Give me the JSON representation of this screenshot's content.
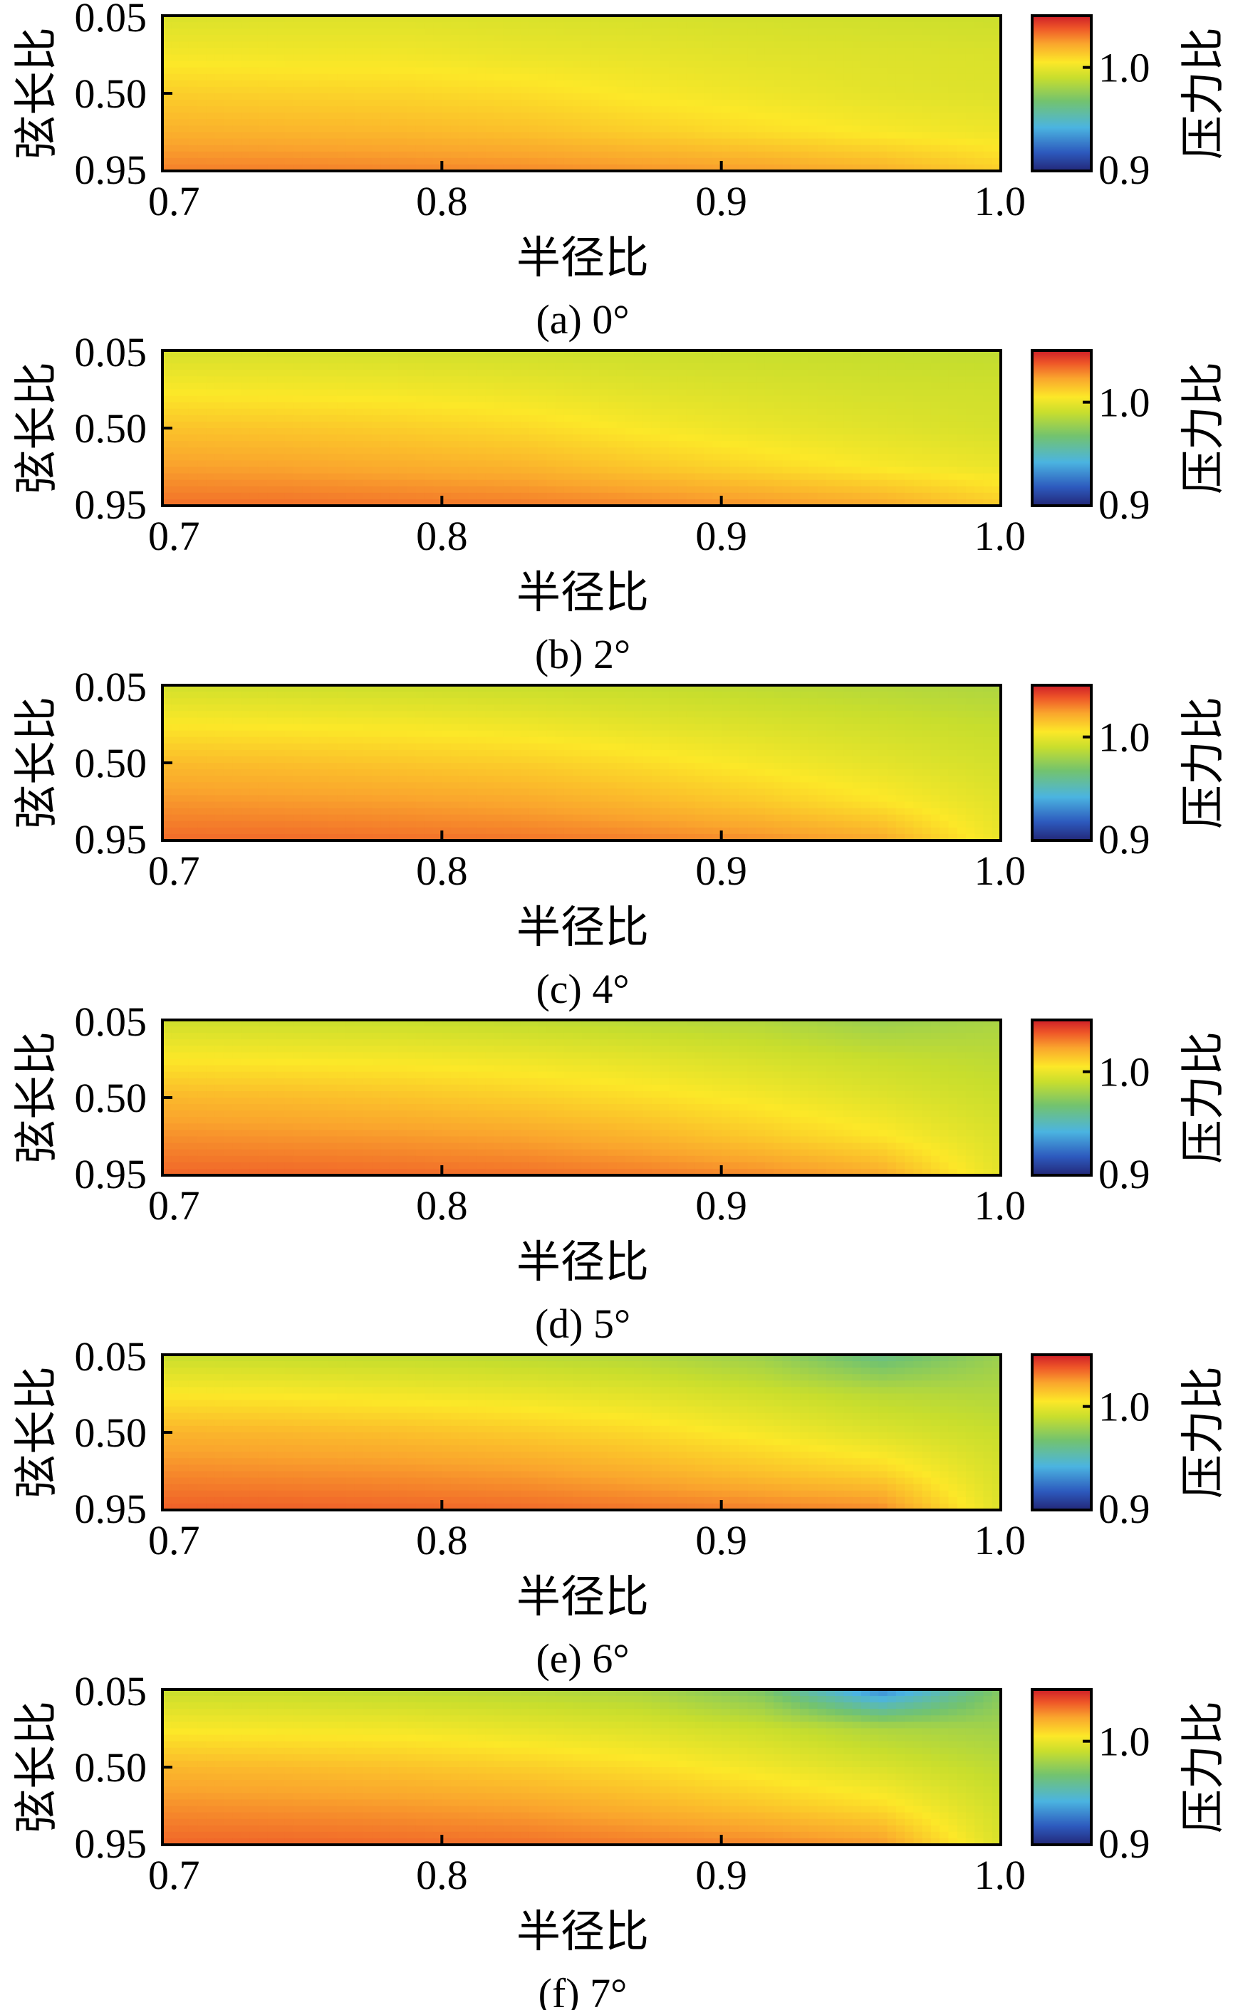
{
  "chart_data": [
    {
      "type": "heatmap",
      "caption": "(a)  0°",
      "xlabel": "半径比",
      "ylabel": "弦长比",
      "colorbar_label": "压力比",
      "xlim": [
        0.7,
        1.0
      ],
      "ylim": [
        0.95,
        0.05
      ],
      "x_ticks": [
        "0.7",
        "0.8",
        "0.9",
        "1.0"
      ],
      "y_ticks": [
        "0.05",
        "0.50",
        "0.95"
      ],
      "colorbar_ticks": [
        "1.0",
        "0.9"
      ],
      "colorbar_range": [
        0.9,
        1.05
      ],
      "values": [
        [
          0.995,
          0.996,
          0.996,
          0.995,
          0.994,
          0.993,
          0.992,
          0.991
        ],
        [
          1.003,
          1.002,
          1.002,
          1.0,
          0.999,
          0.997,
          0.996,
          0.995
        ],
        [
          1.012,
          1.011,
          1.01,
          1.008,
          1.004,
          1.001,
          0.998,
          0.996
        ],
        [
          1.02,
          1.019,
          1.018,
          1.016,
          1.012,
          1.008,
          1.004,
          1.001
        ],
        [
          1.03,
          1.03,
          1.029,
          1.028,
          1.026,
          1.024,
          1.02,
          1.012
        ]
      ]
    },
    {
      "type": "heatmap",
      "caption": "(b)  2°",
      "xlabel": "半径比",
      "ylabel": "弦长比",
      "colorbar_label": "压力比",
      "xlim": [
        0.7,
        1.0
      ],
      "ylim": [
        0.95,
        0.05
      ],
      "x_ticks": [
        "0.7",
        "0.8",
        "0.9",
        "1.0"
      ],
      "y_ticks": [
        "0.05",
        "0.50",
        "0.95"
      ],
      "colorbar_ticks": [
        "1.0",
        "0.9"
      ],
      "colorbar_range": [
        0.9,
        1.05
      ],
      "values": [
        [
          0.994,
          0.994,
          0.993,
          0.992,
          0.991,
          0.99,
          0.989,
          0.988
        ],
        [
          1.004,
          1.003,
          1.002,
          1.0,
          0.997,
          0.995,
          0.993,
          0.992
        ],
        [
          1.015,
          1.014,
          1.012,
          1.009,
          1.004,
          1.0,
          0.997,
          0.994
        ],
        [
          1.024,
          1.023,
          1.021,
          1.019,
          1.014,
          1.009,
          1.004,
          1.0
        ],
        [
          1.033,
          1.033,
          1.032,
          1.031,
          1.029,
          1.026,
          1.022,
          1.013
        ]
      ]
    },
    {
      "type": "heatmap",
      "caption": "(c)  4°",
      "xlabel": "半径比",
      "ylabel": "弦长比",
      "colorbar_label": "压力比",
      "xlim": [
        0.7,
        1.0
      ],
      "ylim": [
        0.95,
        0.05
      ],
      "x_ticks": [
        "0.7",
        "0.8",
        "0.9",
        "1.0"
      ],
      "y_ticks": [
        "0.05",
        "0.50",
        "0.95"
      ],
      "colorbar_ticks": [
        "1.0",
        "0.9"
      ],
      "colorbar_range": [
        0.9,
        1.05
      ],
      "values": [
        [
          0.993,
          0.992,
          0.991,
          0.99,
          0.989,
          0.987,
          0.985,
          0.983
        ],
        [
          1.005,
          1.004,
          1.003,
          1.001,
          0.998,
          0.995,
          0.992,
          0.989
        ],
        [
          1.017,
          1.016,
          1.014,
          1.012,
          1.008,
          1.003,
          0.998,
          0.993
        ],
        [
          1.026,
          1.025,
          1.024,
          1.022,
          1.018,
          1.013,
          1.006,
          0.997
        ],
        [
          1.034,
          1.034,
          1.033,
          1.032,
          1.03,
          1.027,
          1.022,
          1.0
        ]
      ]
    },
    {
      "type": "heatmap",
      "caption": "(d)  5°",
      "xlabel": "半径比",
      "ylabel": "弦长比",
      "colorbar_label": "压力比",
      "xlim": [
        0.7,
        1.0
      ],
      "ylim": [
        0.95,
        0.05
      ],
      "x_ticks": [
        "0.7",
        "0.8",
        "0.9",
        "1.0"
      ],
      "y_ticks": [
        "0.05",
        "0.50",
        "0.95"
      ],
      "colorbar_ticks": [
        "1.0",
        "0.9"
      ],
      "colorbar_range": [
        0.9,
        1.05
      ],
      "values": [
        [
          0.992,
          0.991,
          0.99,
          0.988,
          0.986,
          0.984,
          0.978,
          0.982
        ],
        [
          1.005,
          1.004,
          1.003,
          1.001,
          0.998,
          0.994,
          0.99,
          0.987
        ],
        [
          1.018,
          1.017,
          1.015,
          1.012,
          1.008,
          1.003,
          0.997,
          0.991
        ],
        [
          1.027,
          1.026,
          1.025,
          1.023,
          1.019,
          1.013,
          1.006,
          0.995
        ],
        [
          1.035,
          1.035,
          1.034,
          1.033,
          1.031,
          1.028,
          1.022,
          0.998
        ]
      ]
    },
    {
      "type": "heatmap",
      "caption": "(e)  6°",
      "xlabel": "半径比",
      "ylabel": "弦长比",
      "colorbar_label": "压力比",
      "xlim": [
        0.7,
        1.0
      ],
      "ylim": [
        0.95,
        0.05
      ],
      "x_ticks": [
        "0.7",
        "0.8",
        "0.9",
        "1.0"
      ],
      "y_ticks": [
        "0.05",
        "0.50",
        "0.95"
      ],
      "colorbar_ticks": [
        "1.0",
        "0.9"
      ],
      "colorbar_range": [
        0.9,
        1.05
      ],
      "values": [
        [
          0.99,
          0.989,
          0.988,
          0.986,
          0.984,
          0.978,
          0.962,
          0.978
        ],
        [
          1.005,
          1.004,
          1.002,
          1.0,
          0.997,
          0.992,
          0.986,
          0.984
        ],
        [
          1.019,
          1.018,
          1.016,
          1.013,
          1.009,
          1.003,
          0.996,
          0.99
        ],
        [
          1.028,
          1.027,
          1.026,
          1.024,
          1.02,
          1.015,
          1.01,
          0.994
        ],
        [
          1.036,
          1.036,
          1.035,
          1.034,
          1.032,
          1.03,
          1.028,
          0.996
        ]
      ]
    },
    {
      "type": "heatmap",
      "caption": "(f)  7°",
      "xlabel": "半径比",
      "ylabel": "弦长比",
      "colorbar_label": "压力比",
      "xlim": [
        0.7,
        1.0
      ],
      "ylim": [
        0.95,
        0.05
      ],
      "x_ticks": [
        "0.7",
        "0.8",
        "0.9",
        "1.0"
      ],
      "y_ticks": [
        "0.05",
        "0.50",
        "0.95"
      ],
      "colorbar_ticks": [
        "1.0",
        "0.9"
      ],
      "colorbar_range": [
        0.9,
        1.05
      ],
      "values": [
        [
          0.99,
          0.989,
          0.987,
          0.985,
          0.982,
          0.97,
          0.93,
          0.972
        ],
        [
          1.004,
          1.003,
          1.002,
          0.999,
          0.996,
          0.991,
          0.983,
          0.98
        ],
        [
          1.018,
          1.017,
          1.015,
          1.012,
          1.008,
          1.002,
          0.995,
          0.987
        ],
        [
          1.027,
          1.026,
          1.025,
          1.023,
          1.019,
          1.014,
          1.008,
          0.992
        ],
        [
          1.035,
          1.035,
          1.034,
          1.033,
          1.031,
          1.029,
          1.025,
          0.995
        ]
      ]
    }
  ]
}
